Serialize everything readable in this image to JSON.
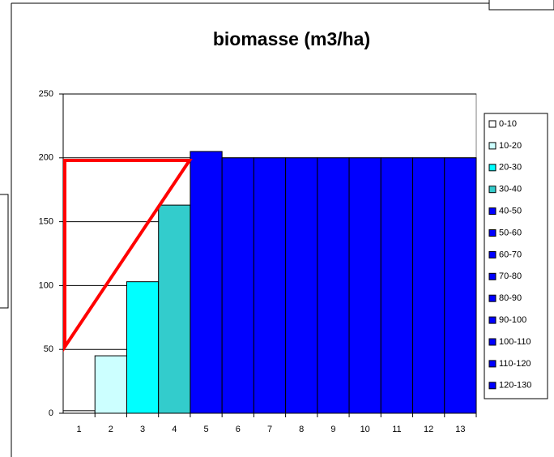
{
  "chart_data": {
    "type": "bar",
    "title": "biomasse (m3/ha)",
    "categories": [
      "1",
      "2",
      "3",
      "4",
      "5",
      "6",
      "7",
      "8",
      "9",
      "10",
      "11",
      "12",
      "13"
    ],
    "values": [
      2,
      45,
      103,
      163,
      205,
      200,
      200,
      200,
      200,
      200,
      200,
      200,
      200
    ],
    "colors": [
      "#ffffff",
      "#ccffff",
      "#00ffff",
      "#33cccc",
      "#0000ff",
      "#0000ff",
      "#0000ff",
      "#0000ff",
      "#0000ff",
      "#0000ff",
      "#0000ff",
      "#0000ff",
      "#0000ff"
    ],
    "legend": [
      "0-10",
      "10-20",
      "20-30",
      "30-40",
      "40-50",
      "50-60",
      "60-70",
      "70-80",
      "80-90",
      "90-100",
      "100-110",
      "110-120",
      "120-130"
    ],
    "ylim": [
      0,
      250
    ],
    "yticks": [
      0,
      50,
      100,
      150,
      200,
      250
    ],
    "grid": true
  }
}
